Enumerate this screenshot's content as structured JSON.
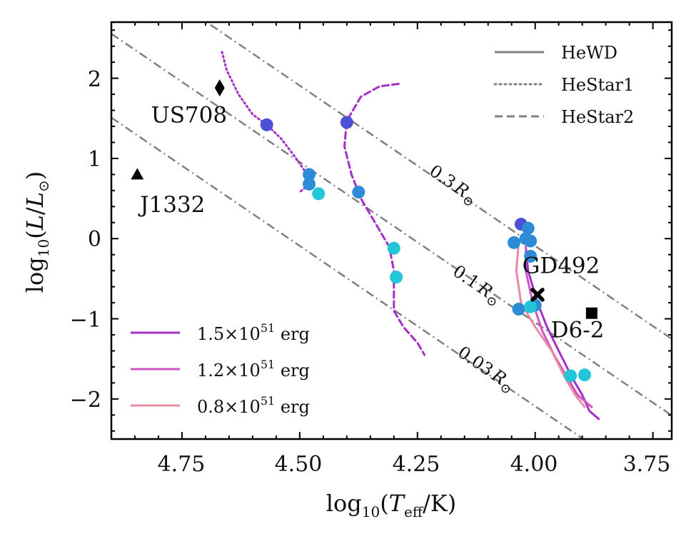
{
  "chart_data": {
    "type": "scatter",
    "title": "",
    "xlabel_parts": {
      "prefix": "log",
      "sub": "10",
      "open": "(",
      "T": "T",
      "T_sub": "eff",
      "unit": "/K)"
    },
    "ylabel_parts": {
      "prefix": "log",
      "sub": "10",
      "open": "(",
      "L": "L",
      "slash": "/",
      "L2": "L",
      "sun": "⊙",
      "close": ")"
    },
    "xlim": [
      4.9,
      3.71
    ],
    "ylim": [
      -2.5,
      2.7
    ],
    "x_ticks": [
      4.75,
      4.5,
      4.25,
      4.0,
      3.75
    ],
    "x_tick_labels": [
      "4.75",
      "4.50",
      "4.25",
      "4.00",
      "3.75"
    ],
    "y_ticks": [
      2,
      1,
      0,
      -1,
      -2
    ],
    "y_tick_labels": [
      "2",
      "1",
      "0",
      "−1",
      "−2"
    ],
    "colors": {
      "purple_15": "#a62fc9",
      "purple_12": "#cc55c4",
      "pink_08": "#ea8aa2",
      "grey": "#808080",
      "blue_dark": "#4d4fd6",
      "blue_mid": "#2e8bd8",
      "cyan": "#22c6d6"
    },
    "radius_lines": [
      {
        "label_num": "0.3",
        "label_unit": "R",
        "label_sun": "⊙",
        "radius_rsun": 0.3,
        "label_at": [
          4.18,
          0.62
        ]
      },
      {
        "label_num": "0.1",
        "label_unit": "R",
        "label_sun": "⊙",
        "radius_rsun": 0.1,
        "label_at": [
          4.13,
          -0.63
        ]
      },
      {
        "label_num": "0.03",
        "label_unit": "R",
        "label_sun": "⊙",
        "radius_rsun": 0.03,
        "label_at": [
          4.11,
          -1.68
        ]
      }
    ],
    "style_legend": [
      {
        "label": "HeWD",
        "dash": "solid"
      },
      {
        "label": "HeStar1",
        "dash": "dotted"
      },
      {
        "label": "HeStar2",
        "dash": "dashed"
      }
    ],
    "energy_legend": [
      {
        "label_pre": "1.5×10",
        "label_exp": "51",
        "label_post": " erg",
        "color": "#a62fc9"
      },
      {
        "label_pre": "1.2×10",
        "label_exp": "51",
        "label_post": " erg",
        "color": "#cc55c4"
      },
      {
        "label_pre": "0.8×10",
        "label_exp": "51",
        "label_post": " erg",
        "color": "#ea8aa2"
      }
    ],
    "series": [
      {
        "name": "HeStar1 track",
        "dash": "dotted",
        "color": "#a62fc9",
        "points": [
          [
            4.665,
            2.33
          ],
          [
            4.655,
            2.1
          ],
          [
            4.63,
            1.8
          ],
          [
            4.6,
            1.55
          ],
          [
            4.57,
            1.42
          ],
          [
            4.54,
            1.25
          ],
          [
            4.51,
            1.02
          ],
          [
            4.49,
            0.85
          ],
          [
            4.48,
            0.68
          ],
          [
            4.5,
            0.58
          ]
        ]
      },
      {
        "name": "HeStar2 track",
        "dash": "dashed",
        "color": "#a62fc9",
        "points": [
          [
            4.29,
            1.93
          ],
          [
            4.33,
            1.9
          ],
          [
            4.37,
            1.77
          ],
          [
            4.4,
            1.47
          ],
          [
            4.405,
            1.15
          ],
          [
            4.39,
            0.8
          ],
          [
            4.37,
            0.5
          ],
          [
            4.34,
            0.2
          ],
          [
            4.31,
            -0.1
          ],
          [
            4.3,
            -0.4
          ],
          [
            4.3,
            -0.7
          ],
          [
            4.3,
            -0.9
          ],
          [
            4.28,
            -1.1
          ],
          [
            4.25,
            -1.3
          ],
          [
            4.235,
            -1.45
          ]
        ]
      },
      {
        "name": "HeWD 1.5e51",
        "dash": "solid",
        "color": "#a62fc9",
        "points": [
          [
            4.02,
            -0.1
          ],
          [
            4.015,
            -0.4
          ],
          [
            3.995,
            -0.8
          ],
          [
            3.975,
            -1.1
          ],
          [
            3.95,
            -1.4
          ],
          [
            3.92,
            -1.75
          ],
          [
            3.9,
            -1.95
          ],
          [
            3.885,
            -2.15
          ],
          [
            3.865,
            -2.25
          ]
        ]
      },
      {
        "name": "HeWD 1.2e51",
        "dash": "solid",
        "color": "#cc55c4",
        "points": [
          [
            4.02,
            -0.1
          ],
          [
            4.02,
            -0.4
          ],
          [
            4.005,
            -0.8
          ],
          [
            3.985,
            -1.15
          ],
          [
            3.96,
            -1.45
          ],
          [
            3.93,
            -1.75
          ],
          [
            3.91,
            -1.95
          ],
          [
            3.88,
            -2.1
          ]
        ]
      },
      {
        "name": "HeWD 0.8e51",
        "dash": "solid",
        "color": "#ea8aa2",
        "points": [
          [
            4.035,
            -0.05
          ],
          [
            4.04,
            -0.4
          ],
          [
            4.03,
            -0.8
          ],
          [
            4.0,
            -1.1
          ],
          [
            3.965,
            -1.4
          ],
          [
            3.935,
            -1.75
          ],
          [
            3.915,
            -1.95
          ],
          [
            3.895,
            -2.1
          ]
        ]
      }
    ],
    "dots": [
      {
        "x": 4.57,
        "y": 1.42,
        "color": "#4d4fd6"
      },
      {
        "x": 4.4,
        "y": 1.45,
        "color": "#4d4fd6"
      },
      {
        "x": 4.48,
        "y": 0.8,
        "color": "#2e8bd8"
      },
      {
        "x": 4.48,
        "y": 0.68,
        "color": "#2e8bd8"
      },
      {
        "x": 4.46,
        "y": 0.56,
        "color": "#22c6d6"
      },
      {
        "x": 4.375,
        "y": 0.58,
        "color": "#2e8bd8"
      },
      {
        "x": 4.3,
        "y": -0.12,
        "color": "#22c6d6"
      },
      {
        "x": 4.295,
        "y": -0.48,
        "color": "#22c6d6"
      },
      {
        "x": 4.03,
        "y": 0.18,
        "color": "#4d4fd6"
      },
      {
        "x": 4.015,
        "y": 0.13,
        "color": "#2e8bd8"
      },
      {
        "x": 4.02,
        "y": 0.0,
        "color": "#2e8bd8"
      },
      {
        "x": 4.045,
        "y": -0.05,
        "color": "#2e8bd8"
      },
      {
        "x": 4.01,
        "y": -0.03,
        "color": "#2e8bd8"
      },
      {
        "x": 4.01,
        "y": -0.22,
        "color": "#2e8bd8"
      },
      {
        "x": 4.035,
        "y": -0.88,
        "color": "#2e8bd8"
      },
      {
        "x": 4.0,
        "y": -0.83,
        "color": "#2e8bd8"
      },
      {
        "x": 4.01,
        "y": -0.85,
        "color": "#22c6d6"
      },
      {
        "x": 3.925,
        "y": -1.71,
        "color": "#22c6d6"
      },
      {
        "x": 3.895,
        "y": -1.7,
        "color": "#22c6d6"
      }
    ],
    "observed": [
      {
        "name": "US708",
        "marker": "diamond",
        "x": 4.67,
        "y": 1.88,
        "label": "US708",
        "label_at": [
          4.735,
          1.45
        ]
      },
      {
        "name": "J1332",
        "marker": "triangle",
        "x": 4.845,
        "y": 0.8,
        "label": "J1332",
        "label_at": [
          4.77,
          0.33
        ]
      },
      {
        "name": "GD492",
        "marker": "cross",
        "x": 3.995,
        "y": -0.7,
        "label": "GD492",
        "label_at": [
          3.945,
          -0.43
        ]
      },
      {
        "name": "D6-2",
        "marker": "square",
        "x": 3.88,
        "y": -0.93,
        "label": "D6-2",
        "label_at": [
          3.91,
          -1.23
        ]
      }
    ]
  }
}
